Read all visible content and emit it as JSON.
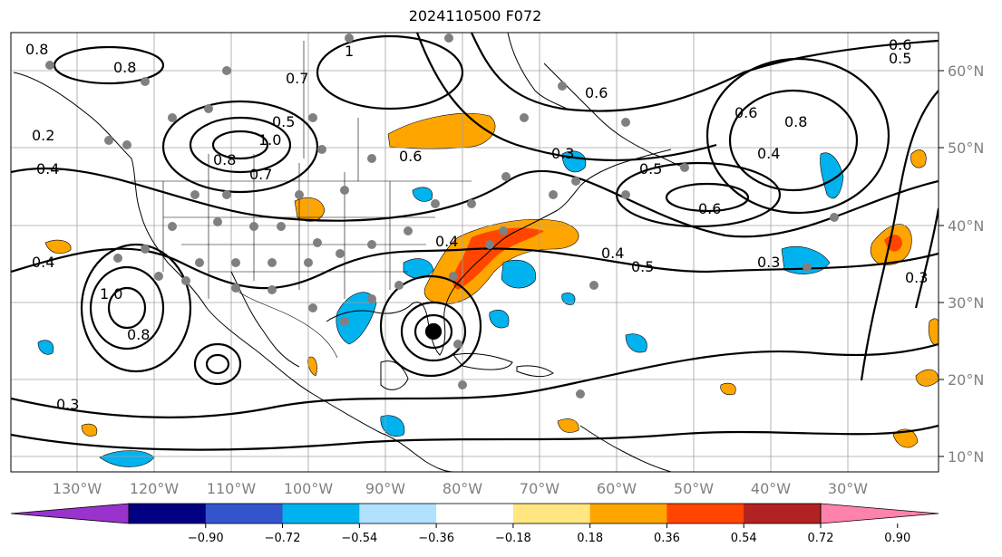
{
  "title": "2024110500 F072",
  "lat_labels": [
    "60°N",
    "50°N",
    "40°N",
    "30°N",
    "20°N",
    "10°N"
  ],
  "lon_labels": [
    "130°W",
    "120°W",
    "110°W",
    "100°W",
    "90°W",
    "80°W",
    "70°W",
    "60°W",
    "50°W",
    "40°W",
    "30°W"
  ],
  "colorbar": {
    "ticks": [
      "−0.90",
      "−0.72",
      "−0.54",
      "−0.36",
      "−0.18",
      "0.18",
      "0.36",
      "0.54",
      "0.72",
      "0.90"
    ],
    "colors": [
      "#9933cc",
      "#000080",
      "#3355cc",
      "#00b2ee",
      "#b0e2ff",
      "#ffffff",
      "#ffe680",
      "#ffa500",
      "#ff4500",
      "#b22222",
      "#ff82ab"
    ]
  },
  "contour_labels": [
    "0.8",
    "0.8",
    "0.7",
    "0.5",
    "1.0",
    "0.8",
    "0.7",
    "0.4",
    "0.2",
    "0.4",
    "1.0",
    "0.8",
    "0.3",
    "0.4",
    "0.5",
    "0.3",
    "0.4",
    "0.5",
    "0.6",
    "0.6",
    "0.6",
    "0.8",
    "0.4",
    "0.3",
    "0.6",
    "0.5",
    "0.3",
    "0.6",
    "1"
  ]
}
